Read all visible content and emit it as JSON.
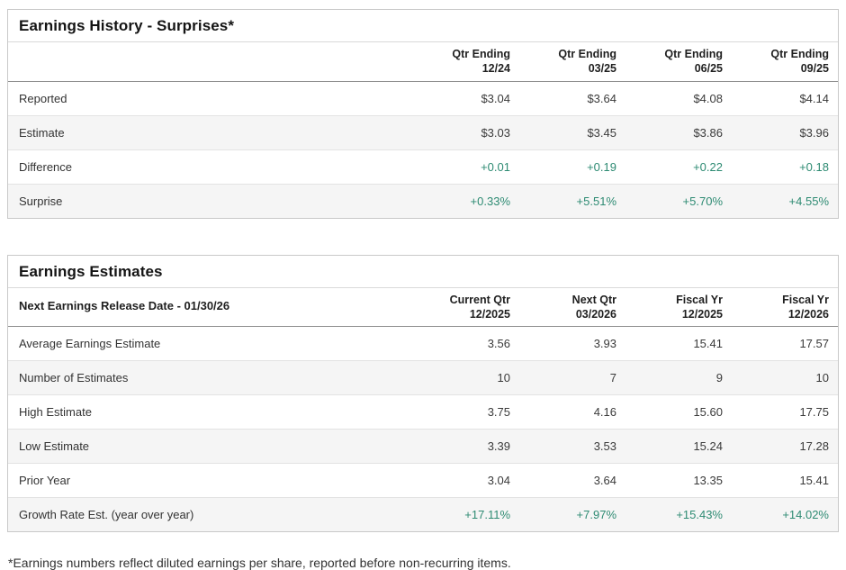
{
  "colors": {
    "positive_green": "#2e8b73",
    "row_stripe": "#f5f5f5",
    "panel_border": "#c9c9c9",
    "header_rule": "#8f8f8f",
    "text": "#333333"
  },
  "history": {
    "title": "Earnings History - Surprises*",
    "columns": [
      "Qtr Ending\n12/24",
      "Qtr Ending\n03/25",
      "Qtr Ending\n06/25",
      "Qtr Ending\n09/25"
    ],
    "rows": [
      {
        "label": "Reported",
        "values": [
          "$3.04",
          "$3.64",
          "$4.08",
          "$4.14"
        ]
      },
      {
        "label": "Estimate",
        "values": [
          "$3.03",
          "$3.45",
          "$3.86",
          "$3.96"
        ]
      },
      {
        "label": "Difference",
        "values": [
          "+0.01",
          "+0.19",
          "+0.22",
          "+0.18"
        ]
      },
      {
        "label": "Surprise",
        "values": [
          "+0.33%",
          "+5.51%",
          "+5.70%",
          "+4.55%"
        ]
      }
    ]
  },
  "estimates": {
    "title": "Earnings Estimates",
    "release_label": "Next Earnings Release Date - 01/30/26",
    "columns": [
      "Current Qtr\n12/2025",
      "Next Qtr\n03/2026",
      "Fiscal Yr\n12/2025",
      "Fiscal Yr\n12/2026"
    ],
    "rows": [
      {
        "label": "Average Earnings Estimate",
        "values": [
          "3.56",
          "3.93",
          "15.41",
          "17.57"
        ]
      },
      {
        "label": "Number of Estimates",
        "values": [
          "10",
          "7",
          "9",
          "10"
        ]
      },
      {
        "label": "High Estimate",
        "values": [
          "3.75",
          "4.16",
          "15.60",
          "17.75"
        ]
      },
      {
        "label": "Low Estimate",
        "values": [
          "3.39",
          "3.53",
          "15.24",
          "17.28"
        ]
      },
      {
        "label": "Prior Year",
        "values": [
          "3.04",
          "3.64",
          "13.35",
          "15.41"
        ]
      },
      {
        "label": "Growth Rate Est. (year over year)",
        "values": [
          "+17.11%",
          "+7.97%",
          "+15.43%",
          "+14.02%"
        ]
      }
    ]
  },
  "footnote": "*Earnings numbers reflect diluted earnings per share, reported before non-recurring items."
}
